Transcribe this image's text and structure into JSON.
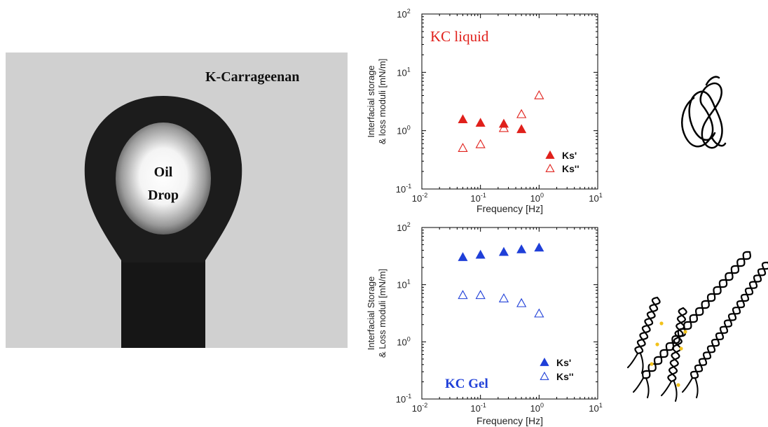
{
  "photo": {
    "label": "K-Carrageenan",
    "drop_label_line1": "Oil",
    "drop_label_line2": "Drop"
  },
  "colors": {
    "liquid": "#e0201b",
    "gel": "#1f3fd8",
    "dots": "#f2c21b"
  },
  "chart_data": [
    {
      "type": "scatter",
      "title": "KC liquid",
      "xlabel": "Frequency [Hz]",
      "ylabel_line1": "Interfacial storage",
      "ylabel_line2": "& loss moduli [mN/m]",
      "x_scale": "log",
      "y_scale": "log",
      "xlim": [
        0.01,
        10
      ],
      "ylim": [
        0.1,
        100
      ],
      "x_ticks": [
        {
          "base": "10",
          "exp": "-2"
        },
        {
          "base": "10",
          "exp": "-1"
        },
        {
          "base": "10",
          "exp": "0"
        },
        {
          "base": "10",
          "exp": "1"
        }
      ],
      "y_ticks": [
        {
          "base": "10",
          "exp": "-1"
        },
        {
          "base": "10",
          "exp": "0"
        },
        {
          "base": "10",
          "exp": "1"
        },
        {
          "base": "10",
          "exp": "2"
        }
      ],
      "grid": false,
      "legend_position": "bottom-right",
      "series": [
        {
          "name": "Ks'",
          "marker": "filled-triangle",
          "x": [
            0.05,
            0.1,
            0.25,
            0.5
          ],
          "y": [
            1.55,
            1.35,
            1.3,
            1.05
          ]
        },
        {
          "name": "Ks''",
          "marker": "open-triangle",
          "x": [
            0.05,
            0.1,
            0.25,
            0.5,
            1.0
          ],
          "y": [
            0.5,
            0.58,
            1.1,
            1.9,
            4.0
          ]
        }
      ]
    },
    {
      "type": "scatter",
      "title": "KC Gel",
      "xlabel": "Frequency [Hz]",
      "ylabel_line1": "Interfacial Storage",
      "ylabel_line2": "& Loss moduli [mN/m]",
      "x_scale": "log",
      "y_scale": "log",
      "xlim": [
        0.01,
        10
      ],
      "ylim": [
        0.1,
        100
      ],
      "x_ticks": [
        {
          "base": "10",
          "exp": "-2"
        },
        {
          "base": "10",
          "exp": "-1"
        },
        {
          "base": "10",
          "exp": "0"
        },
        {
          "base": "10",
          "exp": "1"
        }
      ],
      "y_ticks": [
        {
          "base": "10",
          "exp": "-1"
        },
        {
          "base": "10",
          "exp": "0"
        },
        {
          "base": "10",
          "exp": "1"
        },
        {
          "base": "10",
          "exp": "2"
        }
      ],
      "grid": false,
      "legend_position": "bottom-right",
      "series": [
        {
          "name": "Ks'",
          "marker": "filled-triangle",
          "x": [
            0.05,
            0.1,
            0.25,
            0.5,
            1.0
          ],
          "y": [
            30,
            33,
            37,
            41,
            44
          ]
        },
        {
          "name": "Ks''",
          "marker": "open-triangle",
          "x": [
            0.05,
            0.1,
            0.25,
            0.5,
            1.0
          ],
          "y": [
            6.5,
            6.5,
            5.7,
            4.7,
            3.1
          ]
        }
      ]
    }
  ]
}
